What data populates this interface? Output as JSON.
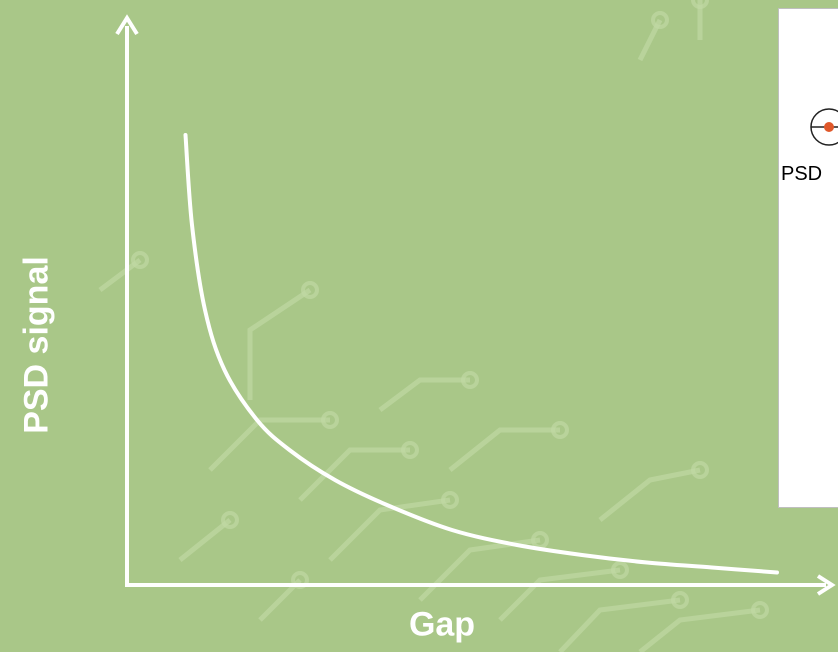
{
  "colors": {
    "background": "#a9c788",
    "circuit": "#c1d8a4",
    "curve": "#ffffff",
    "inset_bg": "#ffffff",
    "psd_dot": "#e0582a"
  },
  "chart_data": {
    "type": "line",
    "xlabel": "Gap",
    "ylabel": "PSD signal",
    "xlim": [
      0,
      10
    ],
    "ylim": [
      0,
      10
    ],
    "grid": false,
    "series": [
      {
        "x": [
          0.9,
          1.0,
          1.2,
          1.5,
          2.0,
          2.5,
          3.2,
          4.0,
          5.0,
          6.0,
          7.0,
          8.0,
          9.0,
          10.0
        ],
        "y": [
          9.0,
          7.2,
          5.5,
          4.3,
          3.3,
          2.7,
          2.1,
          1.6,
          1.1,
          0.8,
          0.6,
          0.45,
          0.35,
          0.25
        ]
      }
    ]
  },
  "inset": {
    "label": "PSD",
    "icon": "psd-detector-icon"
  }
}
